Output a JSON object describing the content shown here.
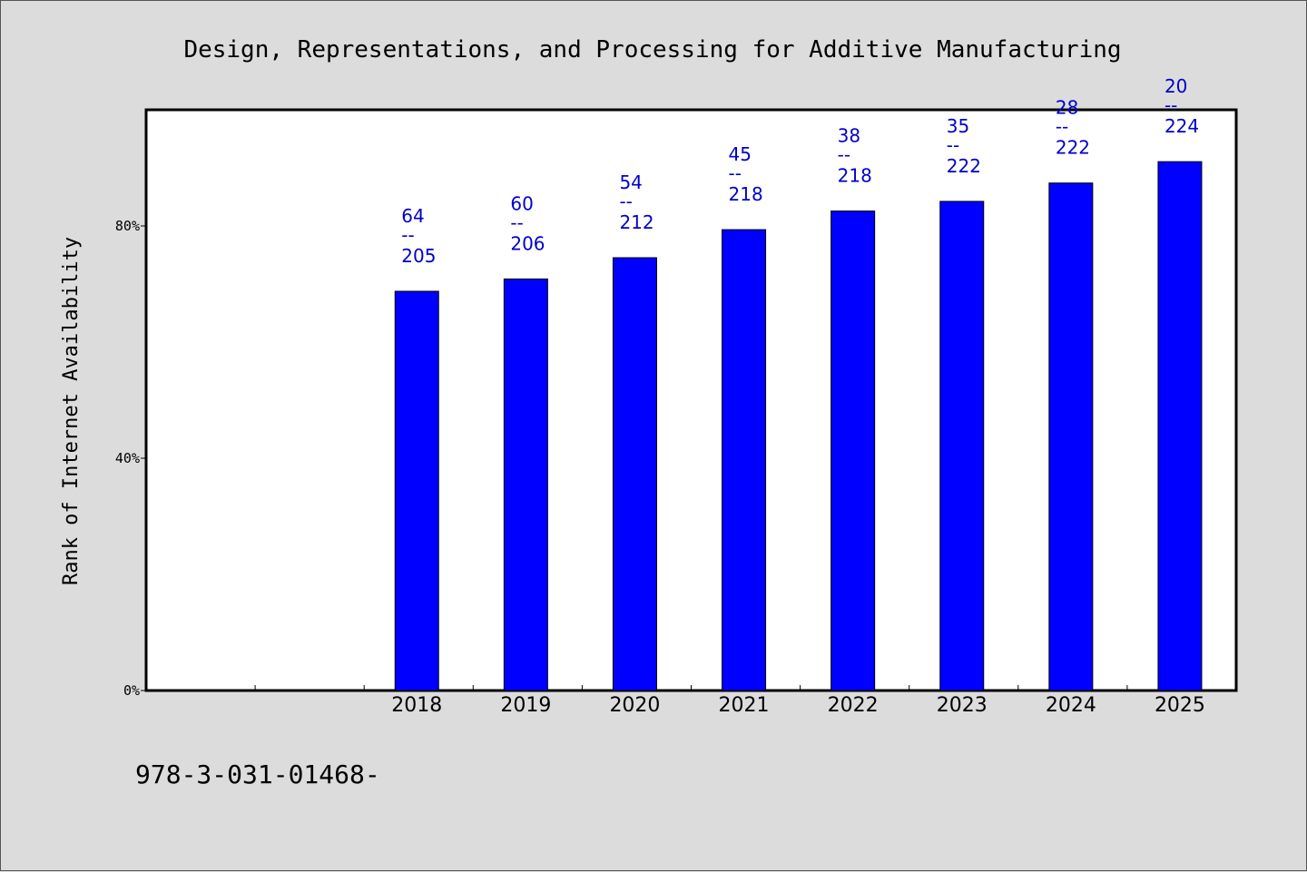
{
  "chart_data": {
    "type": "bar",
    "title": "Design, Representations, and Processing for Additive Manufacturing",
    "ylabel": "Rank of Internet Availability",
    "xlabel": "",
    "categories": [
      "",
      "",
      "2018",
      "2019",
      "2020",
      "2021",
      "2022",
      "2023",
      "2024",
      "2025"
    ],
    "values": [
      null,
      null,
      68.75,
      70.87,
      74.53,
      79.36,
      82.57,
      84.23,
      87.39,
      91.07
    ],
    "data_labels": [
      null,
      null,
      {
        "rank": "64",
        "sep": "--",
        "total": "205"
      },
      {
        "rank": "60",
        "sep": "--",
        "total": "206"
      },
      {
        "rank": "54",
        "sep": "--",
        "total": "212"
      },
      {
        "rank": "45",
        "sep": "--",
        "total": "218"
      },
      {
        "rank": "38",
        "sep": "--",
        "total": "218"
      },
      {
        "rank": "35",
        "sep": "--",
        "total": "222"
      },
      {
        "rank": "28",
        "sep": "--",
        "total": "222"
      },
      {
        "rank": "20",
        "sep": "--",
        "total": "224"
      }
    ],
    "yticks": [
      0,
      40,
      80
    ],
    "ytick_labels": [
      "0%",
      "40%",
      "80%"
    ],
    "ylim": [
      0,
      100
    ],
    "grid": false,
    "colors": {
      "bar": "#0000ff",
      "bar_edge": "#000000",
      "data_label": "#0000cc",
      "plot_bg": "#ffffff",
      "page_bg": "#dcdcdc"
    }
  },
  "footer": {
    "text": "978-3-031-01468-"
  }
}
